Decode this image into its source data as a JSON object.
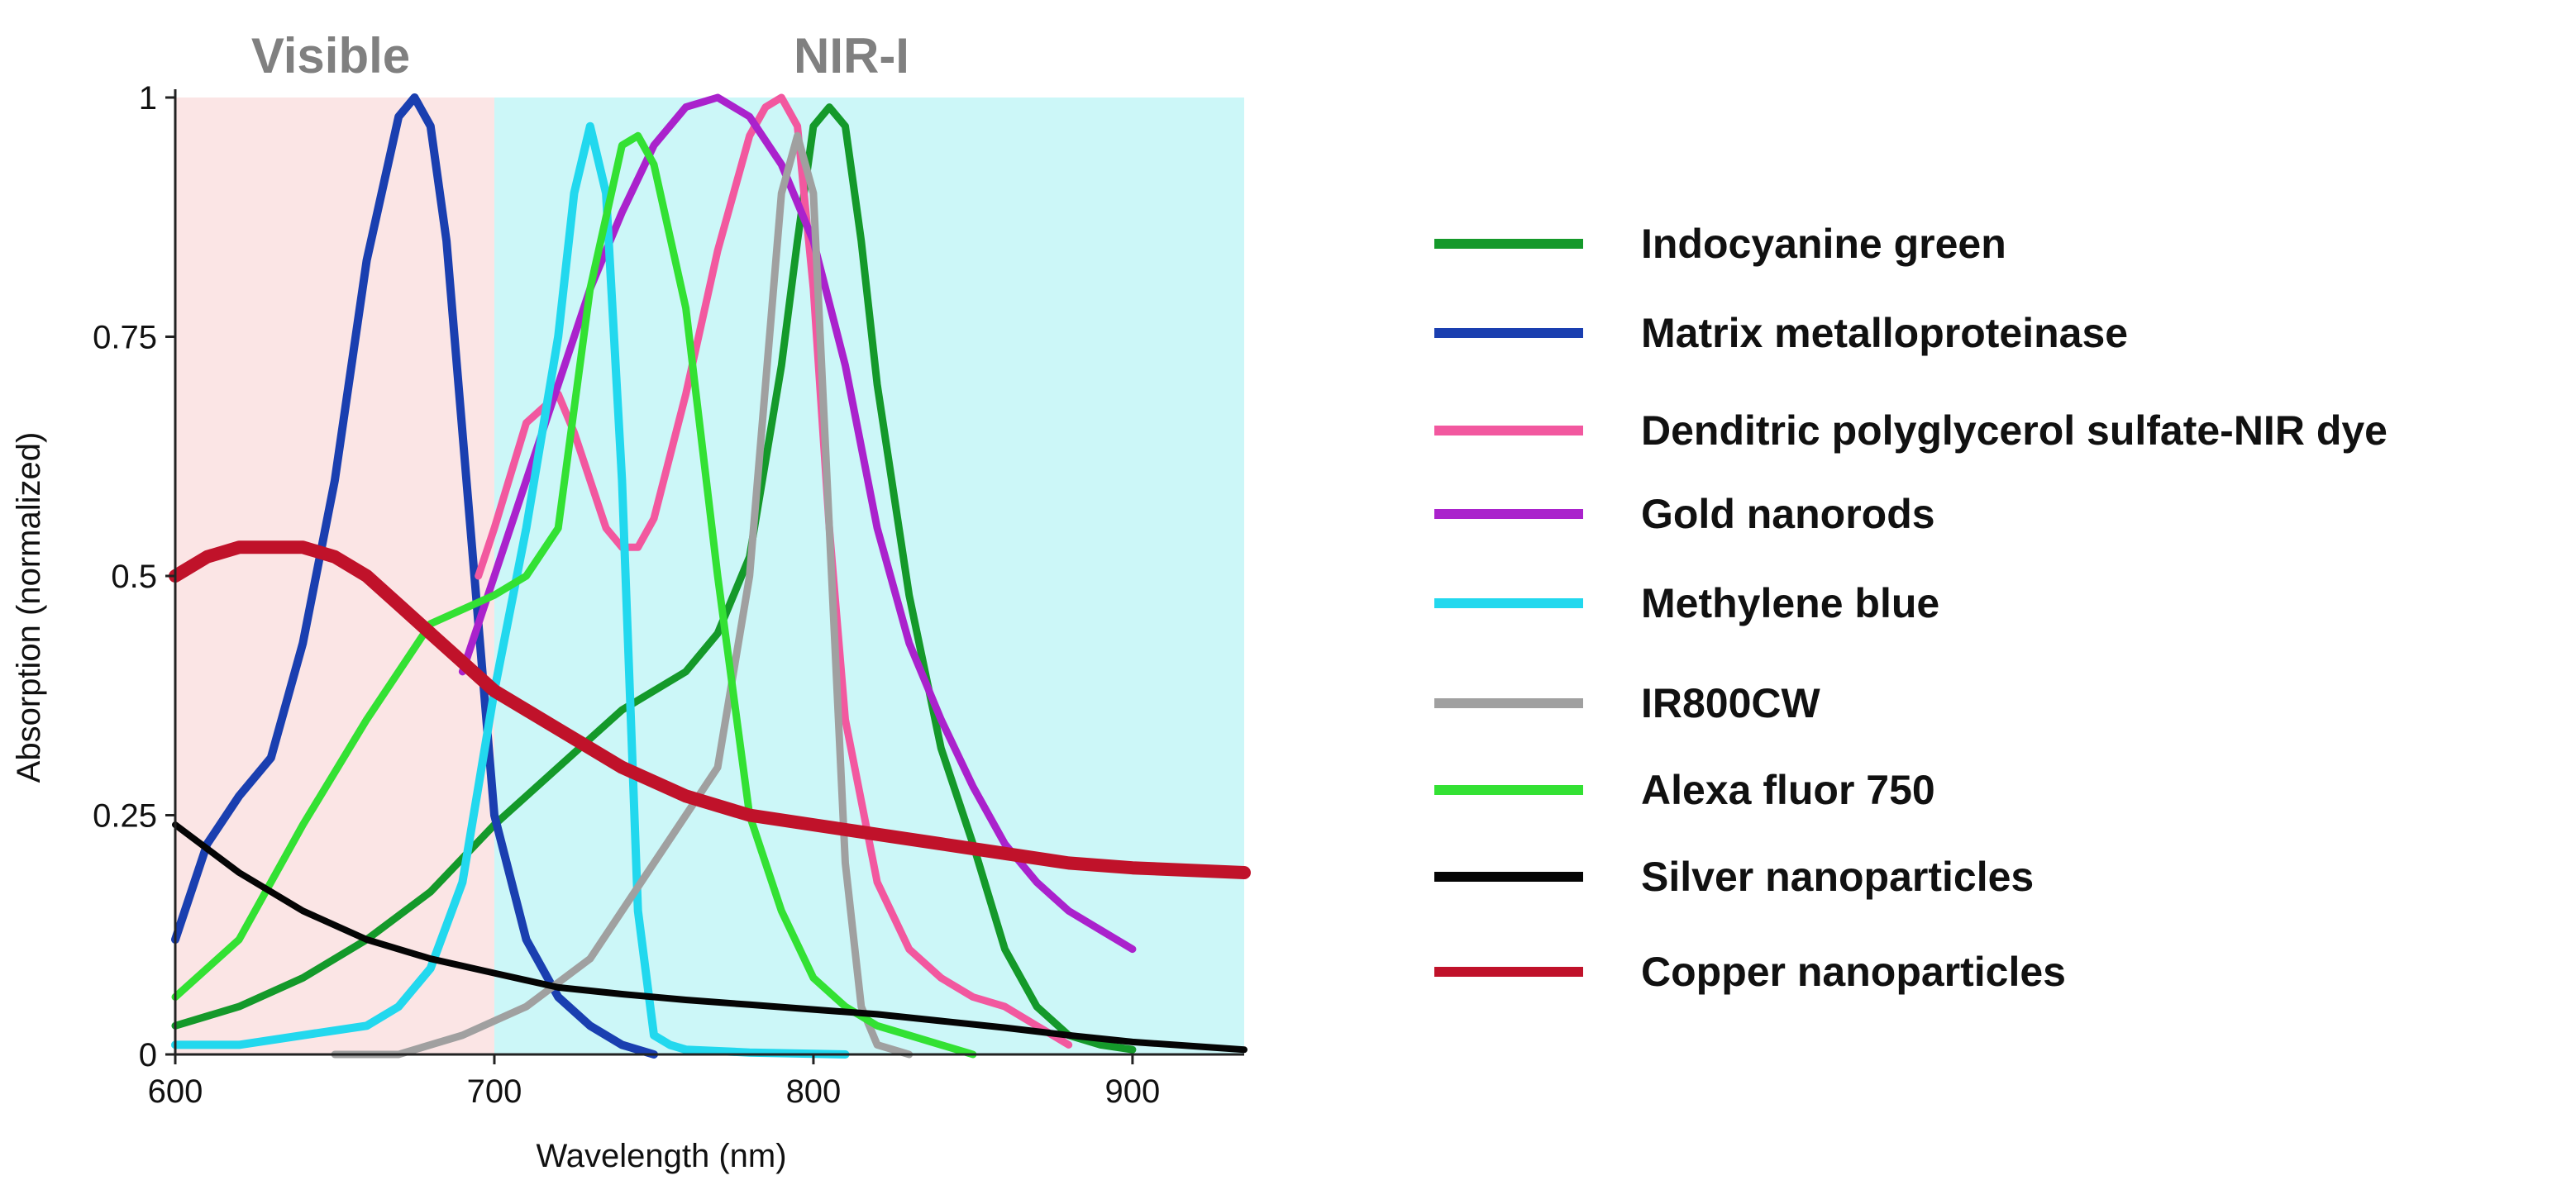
{
  "chart_data": {
    "type": "line",
    "title": "",
    "xlabel": "Wavelength (nm)",
    "ylabel": "Absorption (normalized)",
    "xlim": [
      600,
      935
    ],
    "ylim": [
      0,
      1
    ],
    "x_ticks": [
      "600",
      "700",
      "800",
      "900"
    ],
    "y_ticks": [
      "0",
      "0.25",
      "0.5",
      "0.75",
      "1"
    ],
    "grid": false,
    "legend_position": "right",
    "regions": [
      {
        "label": "Visible",
        "range": [
          600,
          700
        ],
        "color": "#fbe5e5"
      },
      {
        "label": "NIR-I",
        "range": [
          700,
          935
        ],
        "color": "#ccf7f8"
      }
    ],
    "series": [
      {
        "name": "Indocyanine green",
        "color": "#14992a",
        "x": [
          600,
          620,
          640,
          660,
          680,
          700,
          720,
          740,
          760,
          770,
          780,
          790,
          795,
          800,
          805,
          810,
          815,
          820,
          830,
          840,
          850,
          860,
          870,
          880,
          890,
          900
        ],
        "y": [
          0.03,
          0.05,
          0.08,
          0.12,
          0.17,
          0.24,
          0.3,
          0.36,
          0.4,
          0.44,
          0.52,
          0.72,
          0.85,
          0.97,
          0.99,
          0.97,
          0.85,
          0.7,
          0.48,
          0.32,
          0.22,
          0.11,
          0.05,
          0.02,
          0.01,
          0.005
        ]
      },
      {
        "name": "Matrix metalloproteinase",
        "color": "#1a3fb0",
        "x": [
          600,
          610,
          620,
          630,
          640,
          650,
          660,
          670,
          675,
          680,
          685,
          690,
          700,
          710,
          720,
          730,
          740,
          750
        ],
        "y": [
          0.12,
          0.22,
          0.27,
          0.31,
          0.43,
          0.6,
          0.83,
          0.98,
          1.0,
          0.97,
          0.85,
          0.65,
          0.25,
          0.12,
          0.06,
          0.03,
          0.01,
          0.0
        ],
        "width": 10
      },
      {
        "name": "Denditric polyglycerol sulfate-NIR dye",
        "color": "#f2589f",
        "x": [
          695,
          700,
          710,
          720,
          725,
          730,
          735,
          740,
          745,
          750,
          760,
          770,
          780,
          785,
          790,
          795,
          800,
          805,
          810,
          820,
          830,
          840,
          850,
          860,
          870,
          880
        ],
        "y": [
          0.5,
          0.55,
          0.66,
          0.69,
          0.65,
          0.6,
          0.55,
          0.53,
          0.53,
          0.56,
          0.69,
          0.84,
          0.96,
          0.99,
          1.0,
          0.97,
          0.8,
          0.55,
          0.35,
          0.18,
          0.11,
          0.08,
          0.06,
          0.05,
          0.03,
          0.01
        ]
      },
      {
        "name": "Gold nanorods",
        "color": "#aa22cc",
        "x": [
          690,
          700,
          710,
          720,
          730,
          740,
          750,
          760,
          770,
          780,
          790,
          800,
          810,
          820,
          830,
          840,
          850,
          860,
          870,
          880,
          890,
          900
        ],
        "y": [
          0.4,
          0.5,
          0.6,
          0.7,
          0.8,
          0.88,
          0.95,
          0.99,
          1.0,
          0.98,
          0.93,
          0.85,
          0.72,
          0.55,
          0.43,
          0.35,
          0.28,
          0.22,
          0.18,
          0.15,
          0.13,
          0.11
        ]
      },
      {
        "name": "Methylene blue",
        "color": "#22d8ee",
        "x": [
          600,
          620,
          640,
          660,
          670,
          680,
          690,
          700,
          710,
          720,
          725,
          730,
          735,
          740,
          745,
          750,
          755,
          760,
          780,
          810
        ],
        "y": [
          0.01,
          0.01,
          0.02,
          0.03,
          0.05,
          0.09,
          0.18,
          0.38,
          0.55,
          0.75,
          0.9,
          0.97,
          0.9,
          0.6,
          0.15,
          0.02,
          0.01,
          0.005,
          0.002,
          0.0
        ],
        "width": 10
      },
      {
        "name": "IR800CW",
        "color": "#a0a0a0",
        "x": [
          650,
          670,
          690,
          710,
          730,
          750,
          760,
          770,
          780,
          785,
          790,
          795,
          800,
          805,
          810,
          815,
          820,
          830
        ],
        "y": [
          0.0,
          0.0,
          0.02,
          0.05,
          0.1,
          0.2,
          0.25,
          0.3,
          0.5,
          0.7,
          0.9,
          0.96,
          0.9,
          0.55,
          0.2,
          0.05,
          0.01,
          0.0
        ]
      },
      {
        "name": "Alexa fluor 750",
        "color": "#33e133",
        "x": [
          600,
          620,
          640,
          660,
          680,
          700,
          710,
          720,
          730,
          740,
          745,
          750,
          760,
          770,
          780,
          790,
          800,
          810,
          820,
          830,
          840,
          850
        ],
        "y": [
          0.06,
          0.12,
          0.24,
          0.35,
          0.45,
          0.48,
          0.5,
          0.55,
          0.8,
          0.95,
          0.96,
          0.93,
          0.78,
          0.5,
          0.25,
          0.15,
          0.08,
          0.05,
          0.03,
          0.02,
          0.01,
          0.0
        ]
      },
      {
        "name": "Silver nanoparticles",
        "color": "#050505",
        "x": [
          600,
          620,
          640,
          660,
          680,
          700,
          720,
          740,
          760,
          780,
          800,
          820,
          840,
          860,
          880,
          900,
          935
        ],
        "y": [
          0.24,
          0.19,
          0.15,
          0.12,
          0.1,
          0.085,
          0.07,
          0.063,
          0.057,
          0.052,
          0.047,
          0.042,
          0.035,
          0.028,
          0.02,
          0.013,
          0.005
        ],
        "width": 8
      },
      {
        "name": "Copper nanoparticles",
        "color": "#c0122a",
        "x": [
          600,
          610,
          620,
          630,
          640,
          650,
          660,
          670,
          680,
          690,
          700,
          720,
          740,
          760,
          780,
          800,
          820,
          840,
          860,
          880,
          900,
          935
        ],
        "y": [
          0.5,
          0.52,
          0.53,
          0.53,
          0.53,
          0.52,
          0.5,
          0.47,
          0.44,
          0.41,
          0.38,
          0.34,
          0.3,
          0.27,
          0.25,
          0.24,
          0.23,
          0.22,
          0.21,
          0.2,
          0.195,
          0.19
        ],
        "width": 16
      }
    ]
  }
}
